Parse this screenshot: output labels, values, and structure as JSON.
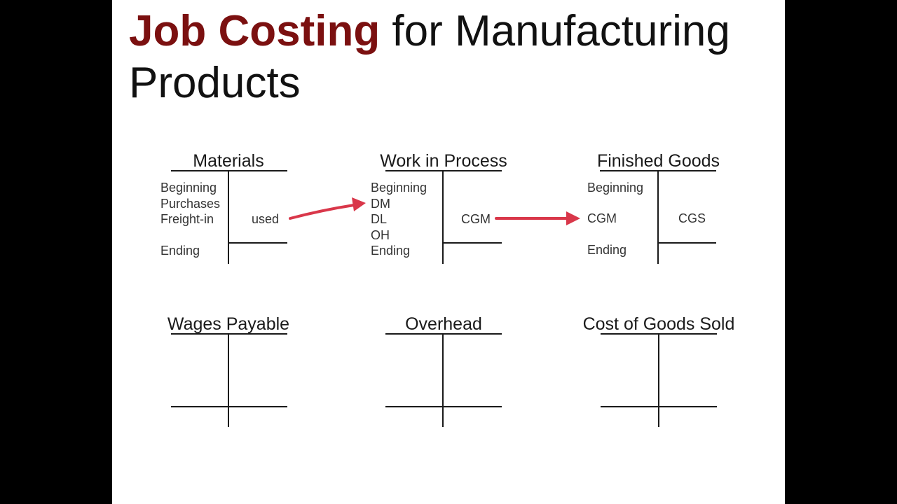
{
  "title": {
    "emphasis": "Job Costing",
    "rest": " for Manufacturing",
    "line2": "Products"
  },
  "accounts": {
    "materials": {
      "name": "Materials",
      "debits": [
        "Beginning",
        "Purchases",
        "Freight-in"
      ],
      "credit": "used",
      "ending": "Ending"
    },
    "wip": {
      "name": "Work in Process",
      "debits": [
        "Beginning",
        "DM",
        "DL",
        "OH"
      ],
      "credit": "CGM",
      "ending": "Ending"
    },
    "finished_goods": {
      "name": "Finished Goods",
      "debits": [
        "Beginning",
        "CGM"
      ],
      "credit": "CGS",
      "ending": "Ending"
    },
    "wages_payable": {
      "name": "Wages Payable"
    },
    "overhead": {
      "name": "Overhead"
    },
    "cogs": {
      "name": "Cost of Goods Sold"
    }
  },
  "colors": {
    "title_emphasis": "#7b1010",
    "arrow": "#d9374a",
    "background": "#ffffff",
    "frame": "#000000"
  }
}
